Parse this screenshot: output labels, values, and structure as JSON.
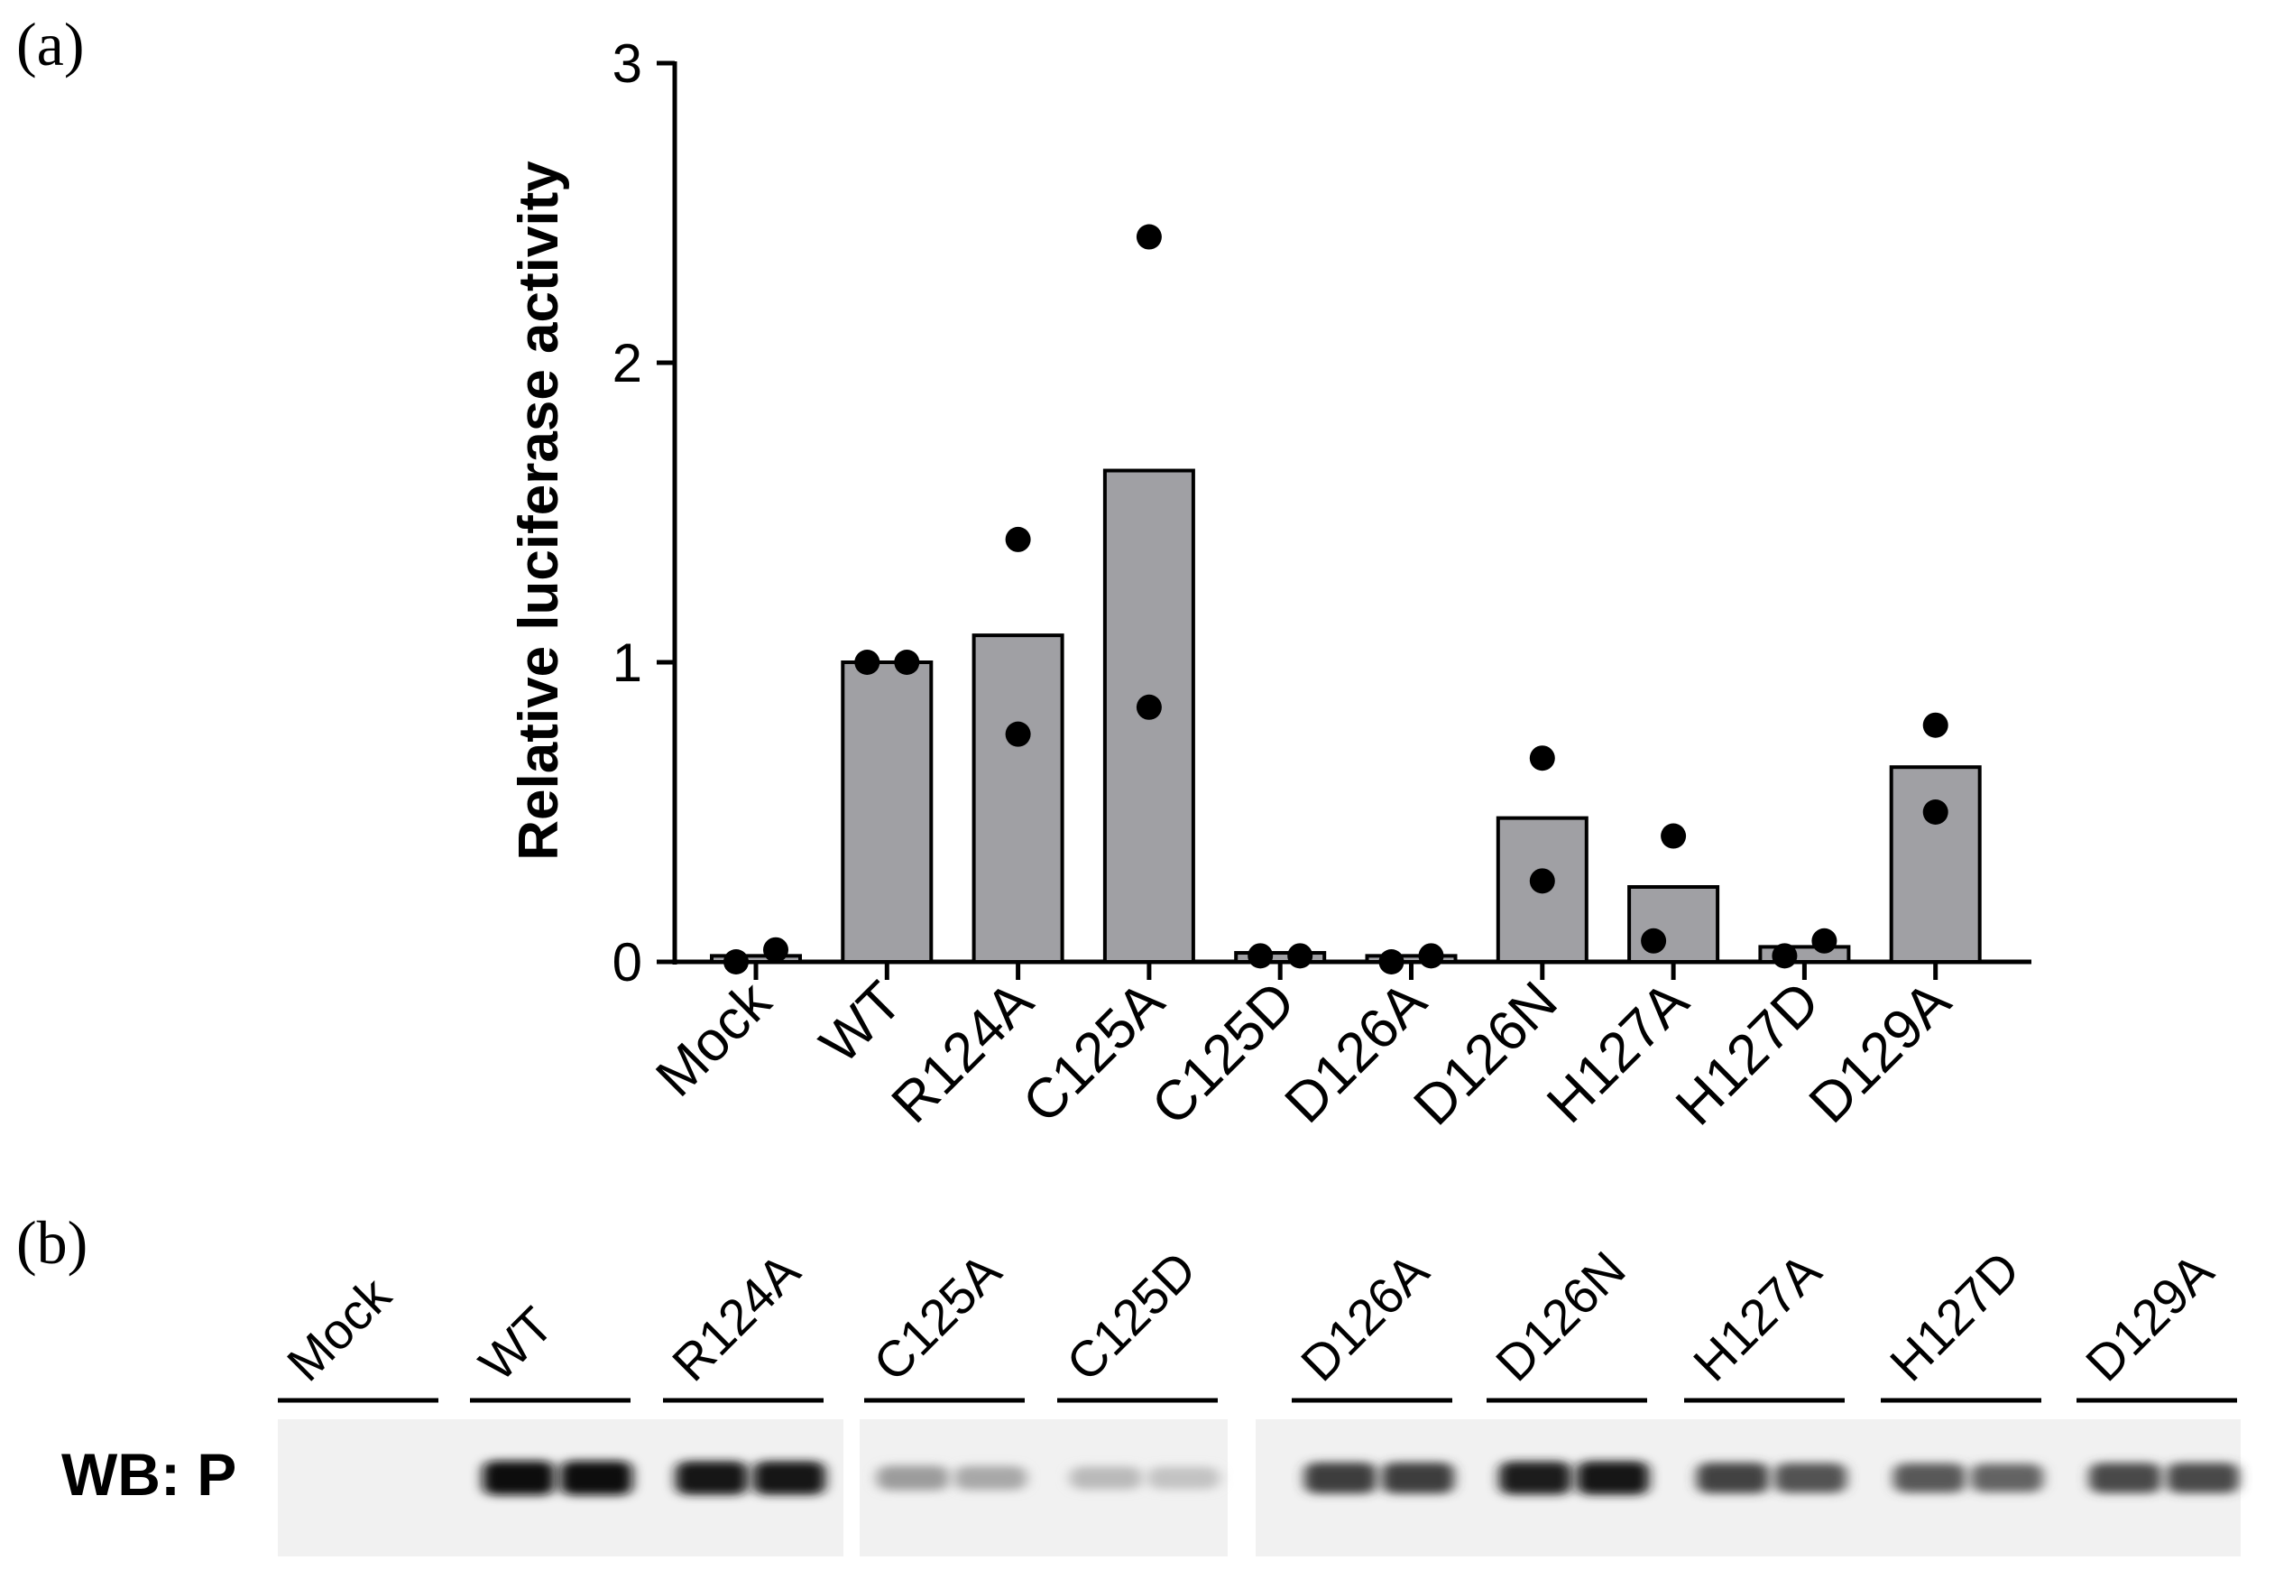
{
  "panels": {
    "a_label": "(a)",
    "b_label": "(b)"
  },
  "chart_data": {
    "type": "bar",
    "title": "",
    "xlabel": "",
    "ylabel": "Relative luciferase activity",
    "ylim": [
      0,
      3
    ],
    "yticks": [
      "0",
      "1",
      "2",
      "3"
    ],
    "categories": [
      "Mock",
      "WT",
      "R124A",
      "C125A",
      "C125D",
      "D126A",
      "D126N",
      "H127A",
      "H127D",
      "D129A"
    ],
    "values": [
      0.02,
      1.0,
      1.09,
      1.64,
      0.03,
      0.02,
      0.48,
      0.25,
      0.05,
      0.65
    ],
    "points": [
      [
        0.0,
        0.04
      ],
      [
        1.0,
        1.0
      ],
      [
        0.76,
        1.41
      ],
      [
        0.85,
        2.42
      ],
      [
        0.02,
        0.02
      ],
      [
        0.0,
        0.02
      ],
      [
        0.27,
        0.68
      ],
      [
        0.07,
        0.42
      ],
      [
        0.02,
        0.07
      ],
      [
        0.5,
        0.79
      ]
    ],
    "bar_color": "#a0a0a4",
    "point_color": "#000000",
    "grid": false
  },
  "blot": {
    "label": "WB: P",
    "lanes": [
      "Mock",
      "WT",
      "R124A",
      "C125A",
      "C125D",
      "D126A",
      "D126N",
      "H127A",
      "H127D",
      "D129A"
    ],
    "band_intensity": [
      [
        0.0,
        0.0
      ],
      [
        1.0,
        1.0
      ],
      [
        0.95,
        0.95
      ],
      [
        0.35,
        0.3
      ],
      [
        0.22,
        0.18
      ],
      [
        0.78,
        0.78
      ],
      [
        0.92,
        0.95
      ],
      [
        0.75,
        0.68
      ],
      [
        0.65,
        0.6
      ],
      [
        0.72,
        0.72
      ]
    ]
  }
}
